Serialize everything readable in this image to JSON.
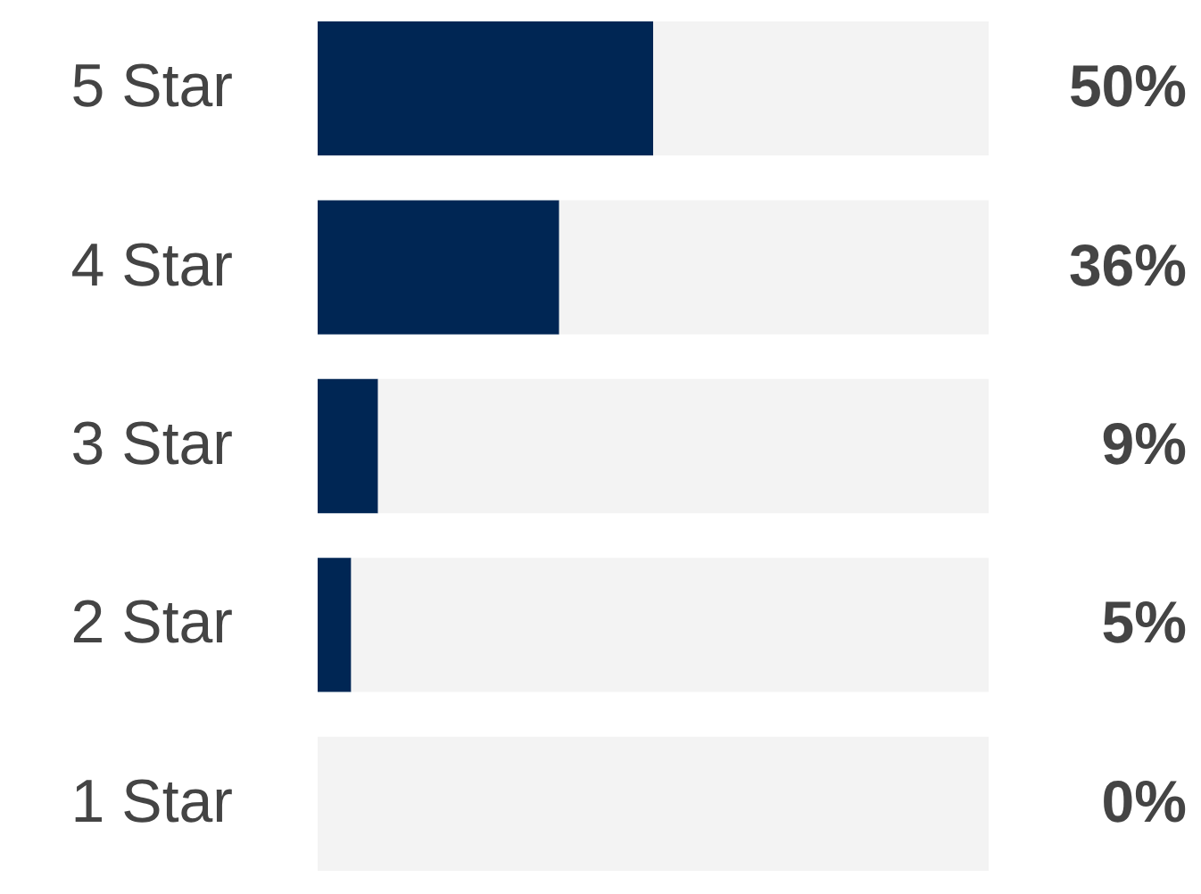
{
  "chart_data": {
    "type": "bar",
    "orientation": "horizontal",
    "stacked": true,
    "categories": [
      "5 Star",
      "4 Star",
      "3 Star",
      "2 Star",
      "1 Star"
    ],
    "xlim": [
      0,
      100
    ],
    "tick_labels": "y",
    "series": [
      {
        "color": "#002654",
        "values": [
          50,
          36,
          9,
          5,
          0
        ],
        "value_labels": [
          "50%",
          "36%",
          "9%",
          "5%",
          "0%"
        ]
      },
      {
        "color": "#f3f3f3",
        "values": [
          50,
          64,
          91,
          95,
          100
        ]
      }
    ]
  }
}
